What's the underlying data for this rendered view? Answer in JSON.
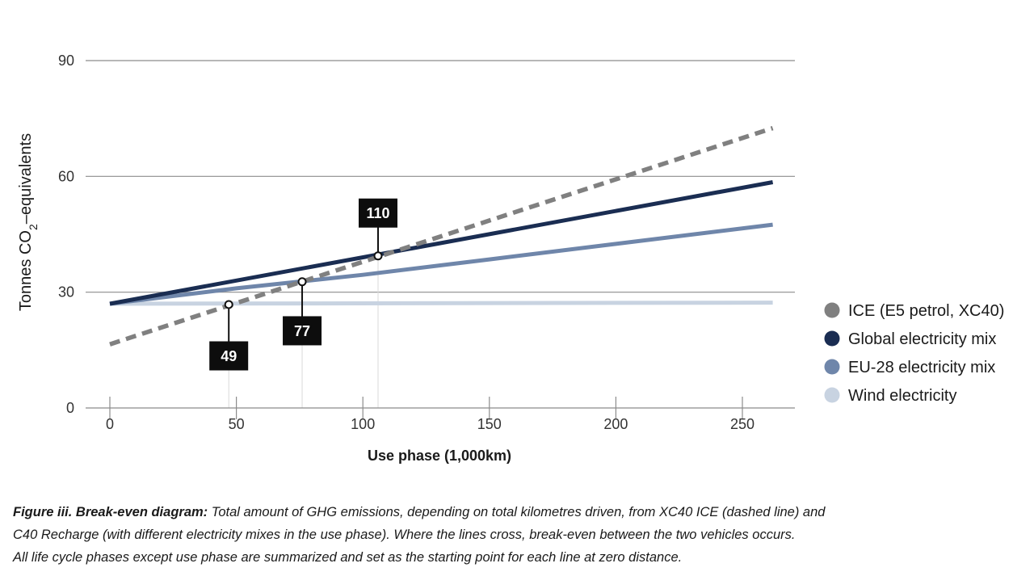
{
  "chart_data": {
    "type": "line",
    "xlabel": "Use phase (1,000km)",
    "ylabel_main": "Tonnes CO",
    "ylabel_sub": "2",
    "ylabel_tail": "–equivalents",
    "xlim": [
      0,
      262
    ],
    "ylim": [
      0,
      90
    ],
    "x_ticks": [
      0,
      50,
      100,
      150,
      200,
      250
    ],
    "y_ticks": [
      0,
      30,
      60,
      90
    ],
    "series": [
      {
        "name": "ICE (E5 petrol, XC40)",
        "color": "#808080",
        "dashed": true,
        "points": [
          [
            0,
            16.5
          ],
          [
            262,
            72.5
          ]
        ]
      },
      {
        "name": "Global electricity mix",
        "color": "#1a2d52",
        "dashed": false,
        "points": [
          [
            0,
            27
          ],
          [
            262,
            58.5
          ]
        ]
      },
      {
        "name": "EU-28 electricity mix",
        "color": "#6f86aa",
        "dashed": false,
        "points": [
          [
            0,
            27
          ],
          [
            50,
            31
          ],
          [
            100,
            34.5
          ],
          [
            150,
            38.5
          ],
          [
            200,
            42.5
          ],
          [
            262,
            47.5
          ]
        ]
      },
      {
        "name": "Wind electricity",
        "color": "#c8d3e1",
        "dashed": false,
        "points": [
          [
            0,
            27
          ],
          [
            262,
            27.3
          ]
        ]
      }
    ],
    "annotations": [
      {
        "label": "49",
        "x": 47,
        "y": 26.8,
        "box_y": 13.5
      },
      {
        "label": "77",
        "x": 76,
        "y": 32.7,
        "box_y": 20
      },
      {
        "label": "110",
        "x": 106,
        "y": 39.4,
        "box_y": 50.5
      }
    ],
    "legend_position": "right"
  },
  "caption": {
    "lead": "Figure iii. Break-even diagram:",
    "line1": " Total amount of GHG emissions, depending on total kilometres driven, from XC40 ICE (dashed line) and",
    "line2": "C40 Recharge (with different electricity mixes in the use phase). Where the lines cross, break-even between the two vehicles occurs.",
    "line3": "All life cycle phases except use phase are summarized and set as the starting point for each line at zero distance."
  }
}
